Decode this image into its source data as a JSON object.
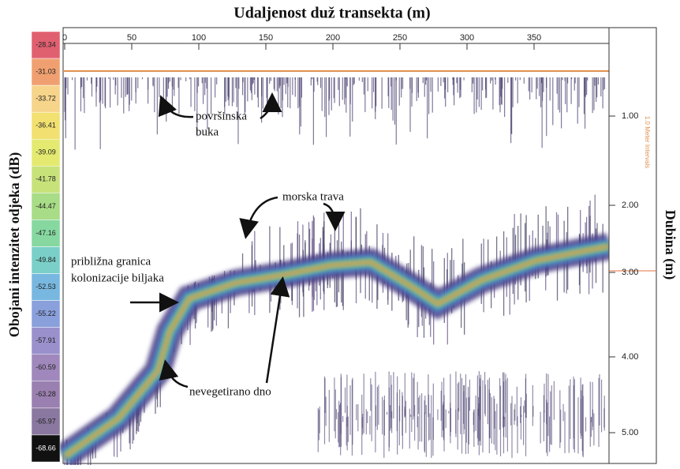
{
  "title": "Udaljenost duž transekta (m)",
  "y_label_left": "Obojani intenzitet odjeka (dB)",
  "y_label_right": "Dubina (m)",
  "right_axis_note": "1.0 Meter Intervals",
  "x_ticks": [
    "0",
    "50",
    "100",
    "150",
    "200",
    "250",
    "300",
    "350"
  ],
  "depth_ticks": [
    "1.00",
    "2.00",
    "3.00",
    "4.00",
    "5.00"
  ],
  "color_scale": [
    "-28.34",
    "-31.03",
    "-33.72",
    "-36.41",
    "-39.09",
    "-41.78",
    "-44.47",
    "-47.16",
    "-49.84",
    "-52.53",
    "-55.22",
    "-57.91",
    "-60.59",
    "-63.28",
    "-65.97",
    "-68.66"
  ],
  "annotations": {
    "surface_noise": [
      "površinska",
      "buka"
    ],
    "seagrass": "morska trava",
    "colonization": [
      "približna granica",
      "kolonizacije biljaka"
    ],
    "bare_bottom": "nevegetirano dno"
  }
}
